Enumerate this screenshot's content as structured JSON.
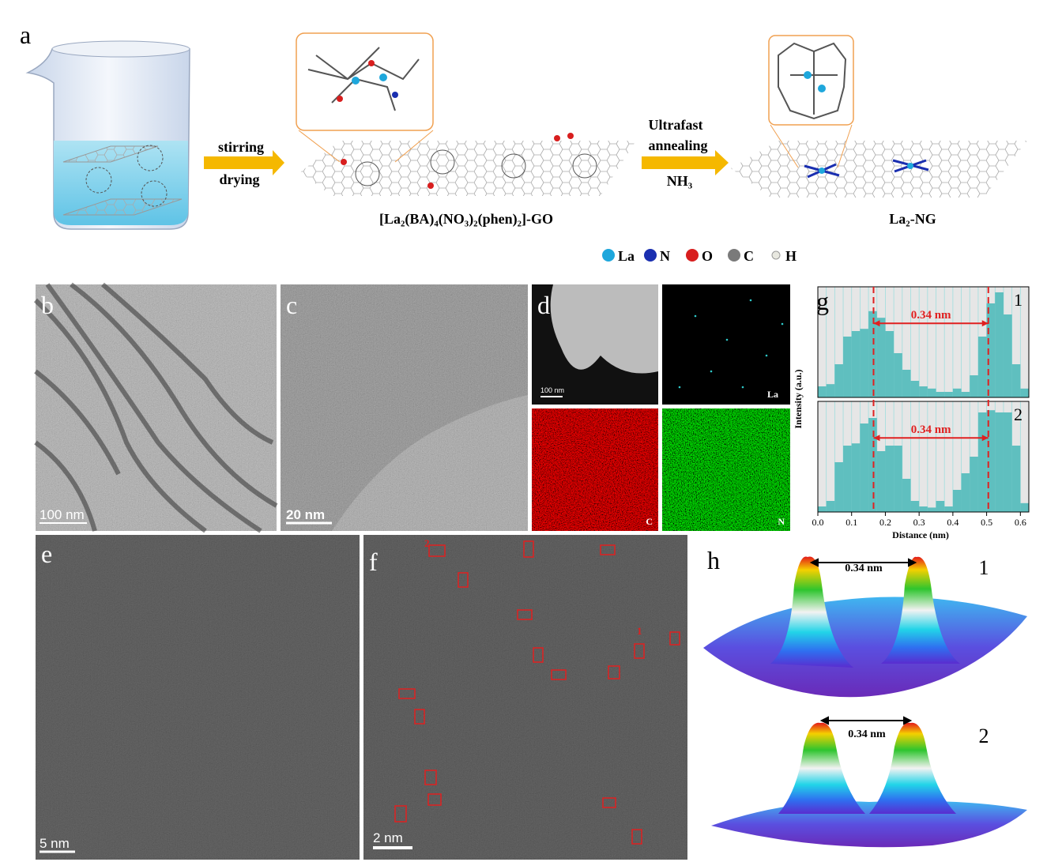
{
  "panel_labels": [
    "a",
    "b",
    "c",
    "d",
    "e",
    "f",
    "g",
    "h"
  ],
  "scheme": {
    "step1": [
      "stirring",
      "drying"
    ],
    "intermediate": "[La₂(BA)₄(NO₃)₂(phen)₂]-GO",
    "step2": [
      "Ultrafast",
      "annealing",
      "NH₃"
    ],
    "product": "La₂-NG",
    "legend": [
      {
        "label": "La",
        "color": "#1ea7dc"
      },
      {
        "label": "N",
        "color": "#1a2fb0"
      },
      {
        "label": "O",
        "color": "#d81e1e"
      },
      {
        "label": "C",
        "color": "#7a7a7a"
      },
      {
        "label": "H",
        "color": "#e8e8e0"
      }
    ]
  },
  "micrographs": {
    "b_scale": "100 nm",
    "c_scale": "20 nm",
    "d_scale": "100 nm",
    "d_maps": [
      "La",
      "C",
      "N"
    ],
    "e_scale": "5 nm",
    "f_scale": "2 nm",
    "f_marks": [
      "2",
      "1"
    ]
  },
  "chart_data": {
    "type": "histogram",
    "xlabel": "Distance (nm)",
    "ylabel": "Intensity (a.u.)",
    "xlim": [
      0,
      0.625
    ],
    "xticks": [
      {
        "value": 0,
        "label": "0.0"
      },
      0.1,
      0.2,
      0.3,
      0.4,
      0.5,
      0.6
    ],
    "ylim": [
      0,
      1
    ],
    "bins": [
      0,
      0.025,
      0.05,
      0.075,
      0.1,
      0.125,
      0.15,
      0.175,
      0.2,
      0.225,
      0.25,
      0.275,
      0.3,
      0.325,
      0.35,
      0.375,
      0.4,
      0.425,
      0.45,
      0.475,
      0.5,
      0.525,
      0.55,
      0.575,
      0.6,
      0.625
    ],
    "series": [
      {
        "name": "1",
        "color": "#5fbfbf",
        "values": [
          0.1,
          0.12,
          0.3,
          0.55,
          0.6,
          0.62,
          0.78,
          0.72,
          0.6,
          0.4,
          0.25,
          0.15,
          0.1,
          0.08,
          0.05,
          0.05,
          0.08,
          0.05,
          0.2,
          0.55,
          0.85,
          0.95,
          0.75,
          0.3,
          0.08
        ]
      },
      {
        "name": "2",
        "color": "#5fbfbf",
        "values": [
          0.05,
          0.1,
          0.45,
          0.6,
          0.62,
          0.8,
          0.85,
          0.55,
          0.6,
          0.6,
          0.3,
          0.1,
          0.05,
          0.04,
          0.1,
          0.05,
          0.2,
          0.35,
          0.5,
          0.9,
          0.92,
          0.9,
          0.9,
          0.6,
          0.08
        ]
      }
    ],
    "dashed_lines": [
      0.165,
      0.505
    ],
    "annotation": "0.34 nm"
  },
  "panel_h": {
    "distance": "0.34 nm",
    "labels": [
      "1",
      "2"
    ]
  }
}
